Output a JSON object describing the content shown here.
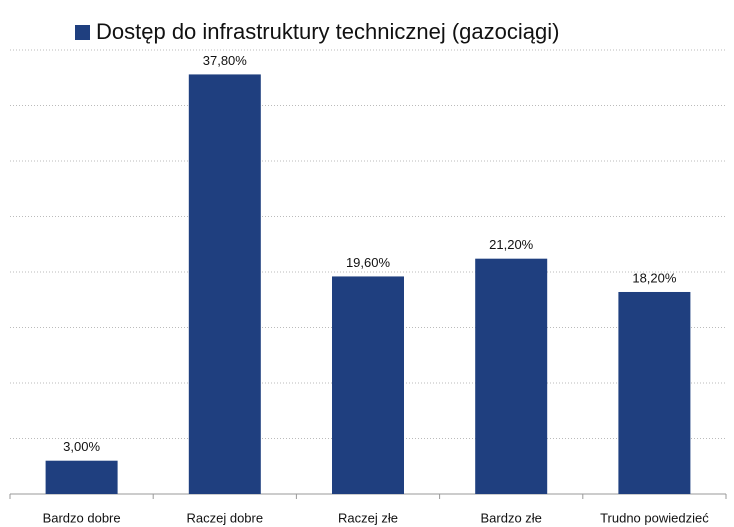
{
  "chart_data": {
    "type": "bar",
    "categories": [
      "Bardzo dobre",
      "Raczej dobre",
      "Raczej złe",
      "Bardzo złe",
      "Trudno powiedzieć"
    ],
    "series": [
      {
        "name": "Dostęp do infrastruktury technicznej (gazociągi)",
        "color": "#1f3f7f",
        "values": [
          3.0,
          37.8,
          19.6,
          21.2,
          18.2
        ],
        "value_labels": [
          "3,00%",
          "37,80%",
          "19,60%",
          "21,20%",
          "18,20%"
        ]
      }
    ],
    "ylim": [
      0,
      40
    ],
    "yticks": [
      0,
      5,
      10,
      15,
      20,
      25,
      30,
      35,
      40
    ],
    "grid": true,
    "legend": "top"
  }
}
